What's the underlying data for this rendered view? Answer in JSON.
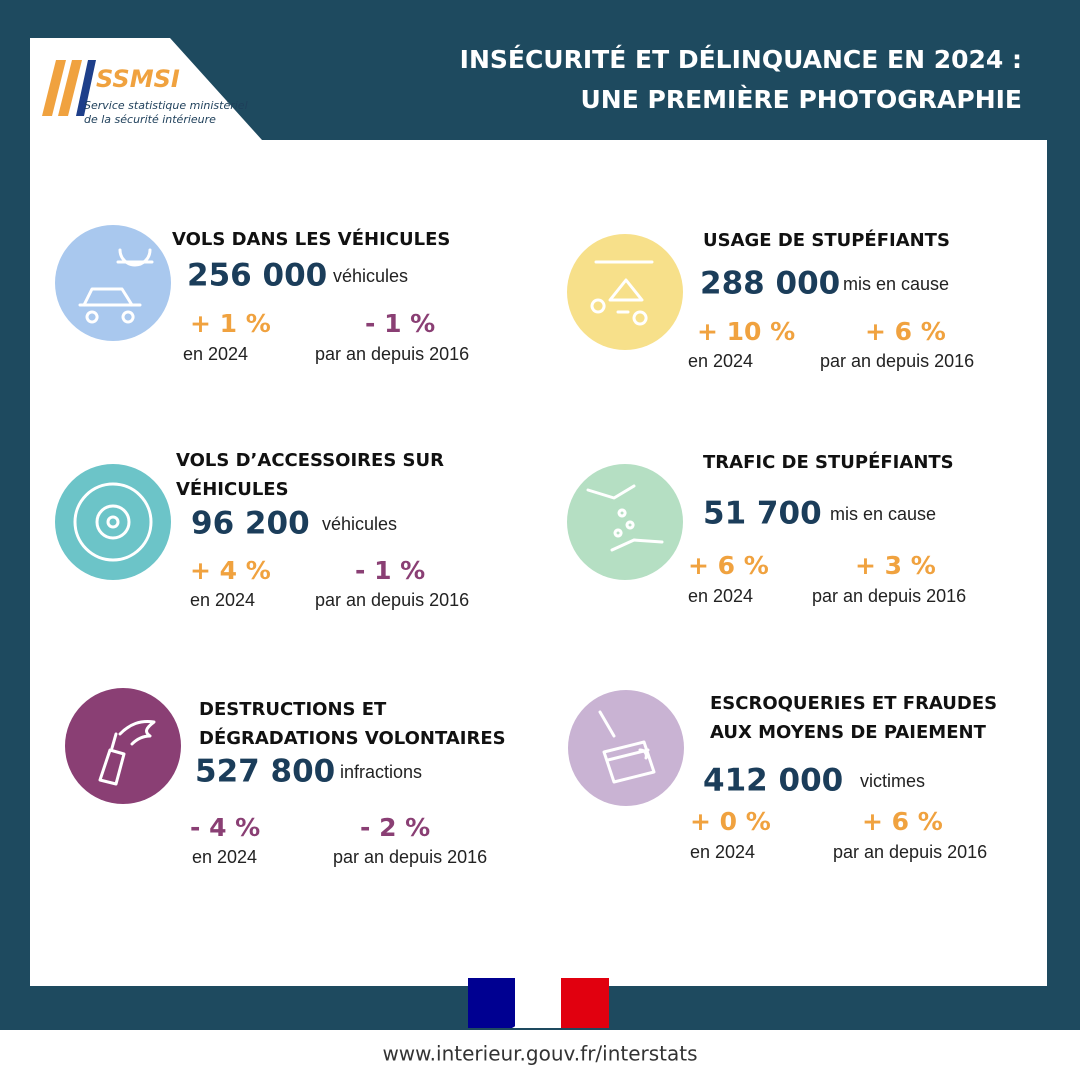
{
  "header": {
    "logo": {
      "acronym": "SSMSI",
      "lines": [
        "Service statistique ministériel",
        "de la sécurité intérieure"
      ]
    },
    "title": [
      "INSÉCURITÉ ET DÉLINQUANCE EN 2024 :",
      "UNE PREMIÈRE PHOTOGRAPHIE"
    ]
  },
  "cards": [
    {
      "title": [
        "VOLS DANS LES VÉHICULES"
      ],
      "value": "256 000",
      "unit": "véhicules",
      "change_year": "+ 1 %",
      "period_year": "en 2024",
      "change_trend": "- 1 %",
      "period_trend": "par an depuis 2016"
    },
    {
      "title": [
        "USAGE DE STUPÉFIANTS"
      ],
      "value": "288 000",
      "unit": "mis en cause",
      "change_year": "+ 10 %",
      "period_year": "en 2024",
      "change_trend": "+ 6 %",
      "period_trend": "par an depuis 2016"
    },
    {
      "title": [
        "VOLS D’ACCESSOIRES SUR",
        "VÉHICULES"
      ],
      "value": "96 200",
      "unit": "véhicules",
      "change_year": "+ 4 %",
      "period_year": "en 2024",
      "change_trend": "- 1 %",
      "period_trend": "par an depuis 2016"
    },
    {
      "title": [
        "TRAFIC DE STUPÉFIANTS"
      ],
      "value": "51 700",
      "unit": "mis en cause",
      "change_year": "+ 6 %",
      "period_year": "en 2024",
      "change_trend": "+ 3 %",
      "period_trend": "par an depuis 2016"
    },
    {
      "title": [
        "DESTRUCTIONS ET",
        "DÉGRADATIONS VOLONTAIRES"
      ],
      "value": "527 800",
      "unit": "infractions",
      "change_year": "- 4 %",
      "period_year": "en 2024",
      "change_trend": "- 2 %",
      "period_trend": "par an depuis 2016"
    },
    {
      "title": [
        "ESCROQUERIES ET FRAUDES",
        "AUX MOYENS DE PAIEMENT"
      ],
      "value": "412 000",
      "unit": "victimes",
      "change_year": "+ 0 %",
      "period_year": "en 2024",
      "change_trend": "+ 6 %",
      "period_trend": "par an depuis 2016"
    }
  ],
  "footer": {
    "url": "www.interieur.gouv.fr/interstats"
  }
}
